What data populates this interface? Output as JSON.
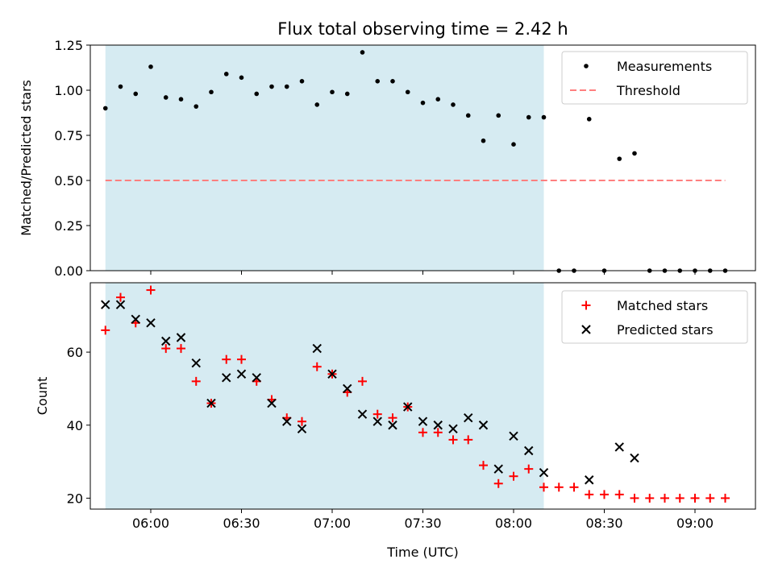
{
  "chart_data": [
    {
      "type": "scatter",
      "title": "Flux total observing time = 2.42 h",
      "xlabel": "",
      "ylabel": "Matched/Predicted stars",
      "xlim": [
        "05:40",
        "09:20"
      ],
      "ylim": [
        0,
        1.25
      ],
      "yticks": [
        "0.00",
        "0.25",
        "0.50",
        "0.75",
        "1.00",
        "1.25"
      ],
      "xticks": [
        "06:00",
        "06:30",
        "07:00",
        "07:30",
        "08:00",
        "08:30",
        "09:00"
      ],
      "shaded_span": [
        "05:45",
        "08:10"
      ],
      "shaded_color": "#add8e6",
      "legend_position": "top-right",
      "legend": [
        "Measurements",
        "Threshold"
      ],
      "series": [
        {
          "name": "Measurements",
          "marker": "dot",
          "color": "#000000",
          "x": [
            "05:45",
            "05:50",
            "05:55",
            "06:00",
            "06:05",
            "06:10",
            "06:15",
            "06:20",
            "06:25",
            "06:30",
            "06:35",
            "06:40",
            "06:45",
            "06:50",
            "06:55",
            "07:00",
            "07:05",
            "07:10",
            "07:15",
            "07:20",
            "07:25",
            "07:30",
            "07:35",
            "07:40",
            "07:45",
            "07:50",
            "07:55",
            "08:00",
            "08:05",
            "08:10",
            "08:15",
            "08:20",
            "08:25",
            "08:30",
            "08:35",
            "08:40",
            "08:45",
            "08:50",
            "08:55",
            "09:00",
            "09:05",
            "09:10"
          ],
          "y": [
            0.9,
            1.02,
            0.98,
            1.13,
            0.96,
            0.95,
            0.91,
            0.99,
            1.09,
            1.07,
            0.98,
            1.02,
            1.02,
            1.05,
            0.92,
            0.99,
            0.98,
            1.21,
            1.05,
            1.05,
            0.99,
            0.93,
            0.95,
            0.92,
            0.86,
            0.72,
            0.86,
            0.7,
            0.85,
            0.85,
            0.0,
            0.0,
            0.84,
            0.0,
            0.62,
            0.65,
            0.0,
            0.0,
            0.0,
            0.0,
            0.0,
            0.0
          ]
        },
        {
          "name": "Threshold",
          "type": "line",
          "style": "dashed",
          "color": "#ff7f7f",
          "x": [
            "05:45",
            "09:10"
          ],
          "y": [
            0.5,
            0.5
          ]
        }
      ]
    },
    {
      "type": "scatter",
      "title": "",
      "xlabel": "Time (UTC)",
      "ylabel": "Count",
      "xlim": [
        "05:40",
        "09:20"
      ],
      "ylim": [
        17,
        79
      ],
      "yticks": [
        "20",
        "40",
        "60"
      ],
      "xticks": [
        "06:00",
        "06:30",
        "07:00",
        "07:30",
        "08:00",
        "08:30",
        "09:00"
      ],
      "shaded_span": [
        "05:45",
        "08:10"
      ],
      "shaded_color": "#add8e6",
      "legend_position": "top-right",
      "legend": [
        "Matched stars",
        "Predicted stars"
      ],
      "series": [
        {
          "name": "Matched stars",
          "marker": "plus",
          "color": "#ff0000",
          "x": [
            "05:45",
            "05:50",
            "05:55",
            "06:00",
            "06:05",
            "06:10",
            "06:15",
            "06:20",
            "06:25",
            "06:30",
            "06:35",
            "06:40",
            "06:45",
            "06:50",
            "06:55",
            "07:00",
            "07:05",
            "07:10",
            "07:15",
            "07:20",
            "07:25",
            "07:30",
            "07:35",
            "07:40",
            "07:45",
            "07:50",
            "07:55",
            "08:00",
            "08:05",
            "08:10",
            "08:15",
            "08:20",
            "08:25",
            "08:30",
            "08:35",
            "08:40",
            "08:45",
            "08:50",
            "08:55",
            "09:00",
            "09:05",
            "09:10"
          ],
          "y": [
            66,
            75,
            68,
            77,
            61,
            61,
            52,
            46,
            58,
            58,
            52,
            47,
            42,
            41,
            56,
            54,
            49,
            52,
            43,
            42,
            45,
            38,
            38,
            36,
            36,
            29,
            24,
            26,
            28,
            23,
            23,
            23,
            21,
            21,
            21,
            20,
            20,
            20,
            20,
            20,
            20,
            20
          ]
        },
        {
          "name": "Predicted stars",
          "marker": "x",
          "color": "#000000",
          "x": [
            "05:45",
            "05:50",
            "05:55",
            "06:00",
            "06:05",
            "06:10",
            "06:15",
            "06:20",
            "06:25",
            "06:30",
            "06:35",
            "06:40",
            "06:45",
            "06:50",
            "06:55",
            "07:00",
            "07:05",
            "07:10",
            "07:15",
            "07:20",
            "07:25",
            "07:30",
            "07:35",
            "07:40",
            "07:45",
            "07:50",
            "07:55",
            "08:00",
            "08:05",
            "08:10",
            "08:25",
            "08:35",
            "08:40"
          ],
          "y": [
            73,
            73,
            69,
            68,
            63,
            64,
            57,
            46,
            53,
            54,
            53,
            46,
            41,
            39,
            61,
            54,
            50,
            43,
            41,
            40,
            45,
            41,
            40,
            39,
            42,
            40,
            28,
            37,
            33,
            27,
            25,
            34,
            31
          ]
        }
      ]
    }
  ]
}
